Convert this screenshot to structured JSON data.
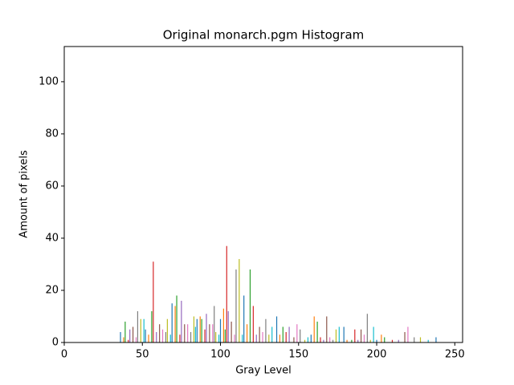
{
  "chart_data": {
    "type": "bar",
    "title": "Original monarch.pgm Histogram",
    "x_label": "Gray Level",
    "y_label": "Amount of pixels",
    "x": [
      36,
      38,
      39,
      41,
      42,
      44,
      46,
      47,
      49,
      51,
      52,
      54,
      56,
      57,
      59,
      61,
      63,
      65,
      66,
      68,
      69,
      71,
      72,
      74,
      75,
      77,
      79,
      81,
      83,
      84,
      85,
      87,
      88,
      90,
      91,
      93,
      95,
      96,
      97,
      99,
      100,
      102,
      103,
      104,
      105,
      107,
      109,
      110,
      112,
      114,
      115,
      117,
      119,
      121,
      123,
      125,
      127,
      129,
      131,
      133,
      136,
      138,
      140,
      142,
      144,
      147,
      149,
      151,
      154,
      156,
      158,
      160,
      162,
      164,
      166,
      168,
      170,
      172,
      174,
      176,
      179,
      181,
      184,
      186,
      188,
      190,
      192,
      194,
      196,
      198,
      200,
      203,
      205,
      210,
      214,
      218,
      220,
      224,
      228,
      233,
      238
    ],
    "values": [
      4,
      2,
      8,
      1,
      5,
      6,
      2,
      12,
      9,
      9,
      5,
      3,
      12,
      31,
      4,
      7,
      5,
      4,
      9,
      3,
      15,
      14,
      18,
      3,
      16,
      7,
      7,
      4,
      10,
      6,
      9,
      10,
      9,
      5,
      11,
      7,
      7,
      14,
      4,
      3,
      9,
      13,
      5,
      37,
      12,
      8,
      3,
      28,
      32,
      3,
      18,
      7,
      28,
      14,
      3,
      6,
      4,
      9,
      3,
      6,
      10,
      3,
      6,
      4,
      6,
      2,
      7,
      5,
      1,
      2,
      3,
      10,
      8,
      2,
      1,
      10,
      2,
      1,
      5,
      6,
      6,
      1,
      1,
      5,
      1,
      5,
      3,
      11,
      1,
      6,
      1,
      3,
      2,
      1,
      1,
      4,
      6,
      2,
      2,
      1,
      2
    ],
    "colors": [
      "#1f77b4",
      "#ff7f0e",
      "#2ca02c",
      "#d62728",
      "#9467bd",
      "#8c564b",
      "#e377c2",
      "#7f7f7f",
      "#bcbd22",
      "#17becf"
    ],
    "xlim": [
      0,
      255
    ],
    "ylim": [
      0,
      113.5
    ],
    "xticks": [
      0,
      50,
      100,
      150,
      200,
      250
    ],
    "yticks": [
      0,
      20,
      40,
      60,
      80,
      100
    ]
  }
}
